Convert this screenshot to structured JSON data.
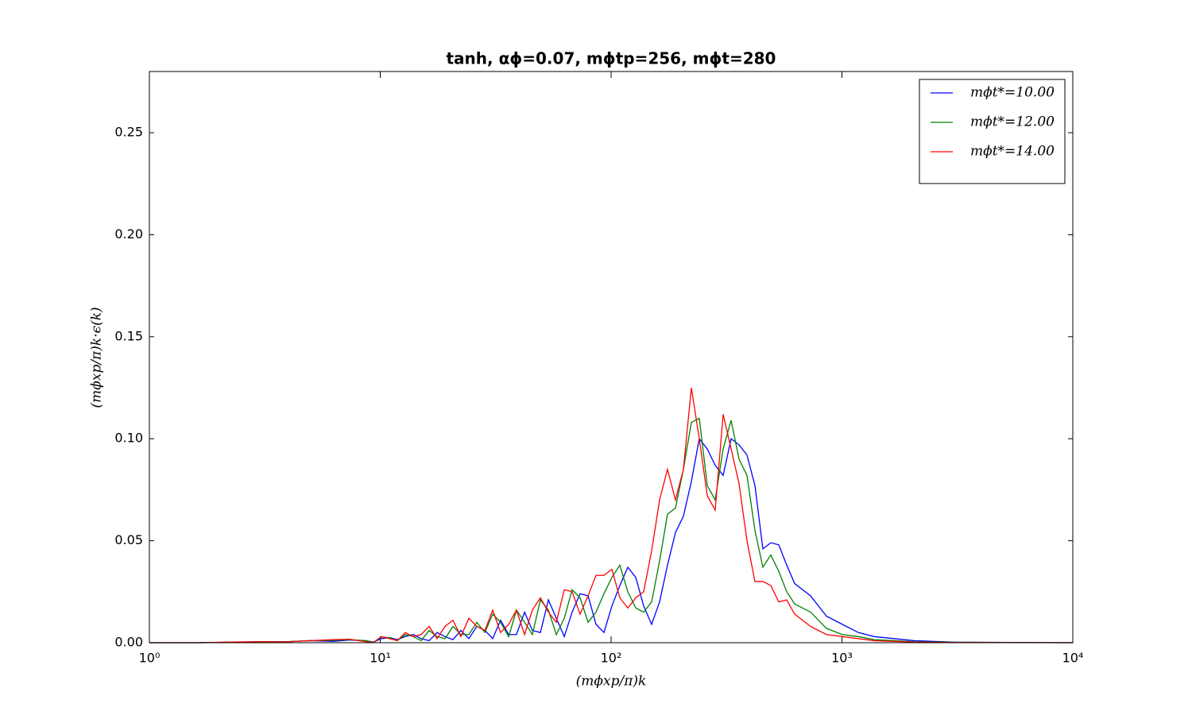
{
  "chart_data": {
    "type": "line",
    "title": "tanh, αϕ=0.07, mϕtp=256, mϕt=280",
    "x_label": "(mϕxp/π)k",
    "y_label": "(mϕxp/π)k·ϵ(k)",
    "x_scale": "log",
    "legend": "upper right",
    "xlim": [
      1,
      10000
    ],
    "ylim": [
      0,
      0.28
    ],
    "xticks": [
      {
        "value": 1,
        "label": "10⁰"
      },
      {
        "value": 10,
        "label": "10¹"
      },
      {
        "value": 100,
        "label": "10²"
      },
      {
        "value": 1000,
        "label": "10³"
      },
      {
        "value": 10000,
        "label": "10⁴"
      }
    ],
    "yticks": [
      {
        "value": 0,
        "label": "0.00"
      },
      0.05,
      {
        "value": 0.1,
        "label": "0.10"
      },
      0.15,
      {
        "value": 0.2,
        "label": "0.20"
      },
      0.25
    ],
    "x": [
      1,
      1.63,
      2.43,
      3.08,
      3.91,
      4.96,
      6.29,
      7.37,
      8.64,
      9.35,
      10.1,
      10.96,
      11.86,
      12.83,
      13.9,
      15.04,
      16.28,
      17.63,
      19.08,
      20.65,
      22.35,
      24.2,
      26.2,
      28.4,
      30.7,
      33.2,
      36.0,
      38.9,
      42.2,
      45.6,
      49.4,
      53.5,
      57.9,
      62.7,
      67.8,
      73.4,
      79.5,
      86.0,
      93.1,
      100.8,
      109.1,
      118.1,
      127.9,
      138.4,
      149.8,
      162.2,
      175.5,
      190,
      205.7,
      222.7,
      241,
      261,
      282.4,
      305.8,
      331,
      358.3,
      387.8,
      419.9,
      454.4,
      491.9,
      532.5,
      576.6,
      624.1,
      731,
      857,
      1004,
      1177,
      1379,
      2049,
      3044,
      10000
    ],
    "series": [
      {
        "name": "mϕt*=10.00",
        "color": "#0000ff",
        "values": [
          0,
          0,
          0.0003,
          0.0005,
          0.0005,
          0.001,
          0.0007,
          0.0013,
          0.001,
          0.0003,
          0.002,
          0.0025,
          0.0015,
          0.003,
          0.004,
          0.002,
          0.001,
          0.005,
          0.003,
          0.0015,
          0.006,
          0.002,
          0.008,
          0.006,
          0.002,
          0.011,
          0.004,
          0.004,
          0.015,
          0.006,
          0.005,
          0.021,
          0.012,
          0.003,
          0.015,
          0.024,
          0.023,
          0.009,
          0.005,
          0.018,
          0.028,
          0.037,
          0.032,
          0.018,
          0.009,
          0.02,
          0.038,
          0.054,
          0.062,
          0.079,
          0.1,
          0.095,
          0.087,
          0.082,
          0.1,
          0.097,
          0.092,
          0.077,
          0.046,
          0.049,
          0.048,
          0.038,
          0.029,
          0.023,
          0.013,
          0.009,
          0.005,
          0.003,
          0.001,
          0.0003,
          0
        ]
      },
      {
        "name": "mϕt*=12.00",
        "color": "#008000",
        "values": [
          0,
          0,
          0.0003,
          0.0005,
          0.0005,
          0.001,
          0.0012,
          0.0015,
          0.001,
          0.0002,
          0.0028,
          0.0025,
          0.001,
          0.004,
          0.003,
          0.001,
          0.006,
          0.003,
          0.002,
          0.008,
          0.004,
          0.004,
          0.01,
          0.005,
          0.014,
          0.01,
          0.003,
          0.016,
          0.01,
          0.004,
          0.021,
          0.016,
          0.004,
          0.012,
          0.026,
          0.022,
          0.01,
          0.015,
          0.024,
          0.032,
          0.038,
          0.025,
          0.017,
          0.015,
          0.02,
          0.04,
          0.063,
          0.066,
          0.085,
          0.108,
          0.11,
          0.077,
          0.07,
          0.095,
          0.109,
          0.09,
          0.082,
          0.055,
          0.037,
          0.043,
          0.035,
          0.025,
          0.019,
          0.015,
          0.007,
          0.004,
          0.003,
          0.0015,
          0.0005,
          0.0002,
          0
        ]
      },
      {
        "name": "mϕt*=14.00",
        "color": "#ff0000",
        "values": [
          0,
          0,
          0.0004,
          0.0005,
          0.0004,
          0.001,
          0.0015,
          0.0017,
          0.0005,
          0.0001,
          0.003,
          0.002,
          0.001,
          0.005,
          0.003,
          0.004,
          0.008,
          0.002,
          0.008,
          0.011,
          0.003,
          0.012,
          0.008,
          0.006,
          0.016,
          0.005,
          0.009,
          0.016,
          0.004,
          0.016,
          0.022,
          0.015,
          0.01,
          0.026,
          0.025,
          0.014,
          0.023,
          0.033,
          0.033,
          0.036,
          0.022,
          0.017,
          0.022,
          0.025,
          0.045,
          0.07,
          0.085,
          0.07,
          0.085,
          0.125,
          0.1,
          0.072,
          0.065,
          0.112,
          0.095,
          0.078,
          0.05,
          0.03,
          0.03,
          0.028,
          0.02,
          0.021,
          0.014,
          0.008,
          0.004,
          0.003,
          0.002,
          0.001,
          0.0003,
          0.0001,
          0
        ]
      }
    ]
  }
}
